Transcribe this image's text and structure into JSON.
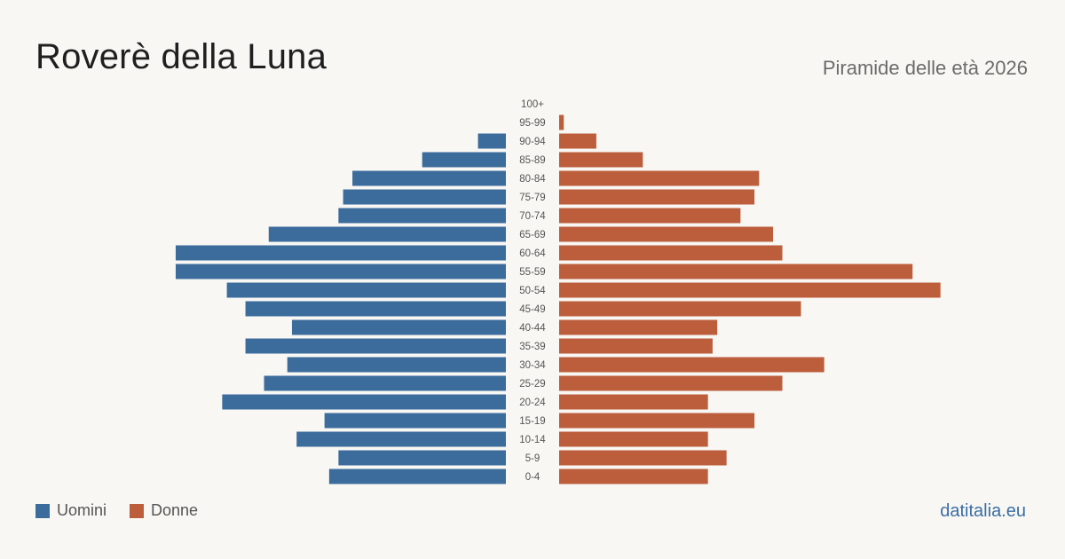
{
  "header": {
    "title": "Roverè della Luna",
    "subtitle": "Piramide delle età 2026"
  },
  "footer": {
    "site": "datitalia.eu"
  },
  "colors": {
    "men": "#3c6c9c",
    "women": "#bc5e3c"
  },
  "chart_data": {
    "type": "bar",
    "orientation": "horizontal-pyramid",
    "categories": [
      "100+",
      "95-99",
      "90-94",
      "85-89",
      "80-84",
      "75-79",
      "70-74",
      "65-69",
      "60-64",
      "55-59",
      "50-54",
      "45-49",
      "40-44",
      "35-39",
      "30-34",
      "25-29",
      "20-24",
      "15-19",
      "10-14",
      "5-9",
      "0-4"
    ],
    "series": [
      {
        "name": "Uomini",
        "values": [
          0,
          0,
          6,
          18,
          33,
          35,
          36,
          51,
          71,
          71,
          60,
          56,
          46,
          56,
          47,
          52,
          61,
          39,
          45,
          36,
          38
        ]
      },
      {
        "name": "Donne",
        "values": [
          0,
          1,
          8,
          18,
          43,
          42,
          39,
          46,
          48,
          76,
          82,
          52,
          34,
          33,
          57,
          48,
          32,
          42,
          32,
          36,
          32
        ]
      }
    ],
    "legend": [
      "Uomini",
      "Donne"
    ],
    "legend_position": "bottom-left",
    "grid": false
  }
}
